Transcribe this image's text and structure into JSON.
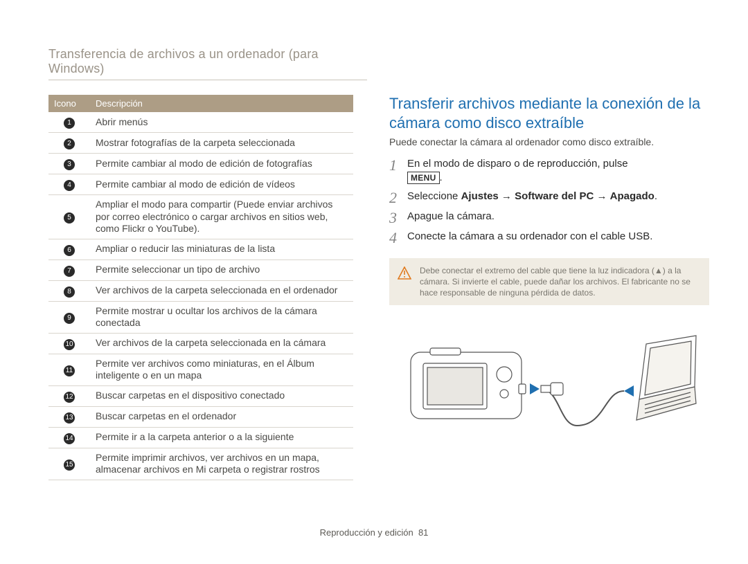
{
  "header": {
    "title": "Transferencia de archivos a un ordenador (para Windows)"
  },
  "iconTable": {
    "headers": {
      "icon": "Icono",
      "desc": "Descripción"
    },
    "rows": [
      {
        "n": "1",
        "desc": "Abrir menús"
      },
      {
        "n": "2",
        "desc": "Mostrar fotografías de la carpeta seleccionada"
      },
      {
        "n": "3",
        "desc": "Permite cambiar al modo de edición de fotografías"
      },
      {
        "n": "4",
        "desc": "Permite cambiar al modo de edición de vídeos"
      },
      {
        "n": "5",
        "desc": "Ampliar el modo para compartir (Puede enviar archivos por correo electrónico o cargar archivos en sitios web, como Flickr o YouTube)."
      },
      {
        "n": "6",
        "desc": "Ampliar o reducir las miniaturas de la lista"
      },
      {
        "n": "7",
        "desc": "Permite seleccionar un tipo de archivo"
      },
      {
        "n": "8",
        "desc": "Ver archivos de la carpeta seleccionada en el ordenador"
      },
      {
        "n": "9",
        "desc": "Permite mostrar u ocultar los archivos de la cámara conectada"
      },
      {
        "n": "10",
        "desc": "Ver archivos de la carpeta seleccionada en la cámara"
      },
      {
        "n": "11",
        "desc": "Permite ver archivos como miniaturas, en el Álbum inteligente o en un mapa"
      },
      {
        "n": "12",
        "desc": "Buscar carpetas en el dispositivo conectado"
      },
      {
        "n": "13",
        "desc": "Buscar carpetas en el ordenador"
      },
      {
        "n": "14",
        "desc": "Permite ir a la carpeta anterior o a la siguiente"
      },
      {
        "n": "15",
        "desc": "Permite imprimir archivos, ver archivos en un mapa, almacenar archivos en Mi carpeta o registrar rostros"
      }
    ]
  },
  "right": {
    "title": "Transferir archivos mediante la conexión de la cámara como disco extraíble",
    "intro": "Puede conectar la cámara al ordenador como disco extraíble.",
    "steps": [
      {
        "n": "1",
        "pre": "En el modo de disparo o de reproducción, pulse ",
        "suffix_is_menu": true,
        "menu_text": "MENU",
        "post": "."
      },
      {
        "n": "2",
        "html": "Seleccione <b>Ajustes</b> → <b>Software del PC</b> → <b>Apagado</b>."
      },
      {
        "n": "3",
        "text": "Apague la cámara."
      },
      {
        "n": "4",
        "text": "Conecte la cámara a su ordenador con el cable USB."
      }
    ],
    "warning": "Debe conectar el extremo del cable que tiene la luz indicadora (▲) a la cámara. Si invierte el cable, puede dañar los archivos. El fabricante no se hace responsable de ninguna pérdida de datos."
  },
  "footer": {
    "section": "Reproducción y edición",
    "page": "81"
  },
  "colors": {
    "header_text": "#9a9388",
    "th_bg": "#ad9d85",
    "th_text": "#ffffff",
    "row_border": "#d9d5cd",
    "body_text": "#4a4946",
    "title_blue": "#1f6fb0",
    "num_circle_bg": "#2a2a2a",
    "step_num": "#848484",
    "warn_bg": "#f0ece3",
    "warn_icon": "#e07a1f"
  }
}
